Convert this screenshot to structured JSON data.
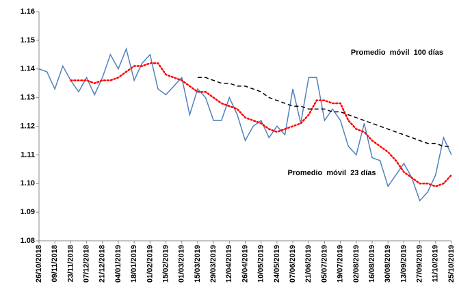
{
  "chart_data": {
    "type": "line",
    "categories": [
      "26/10/2018",
      null,
      "09/11/2018",
      null,
      "23/11/2018",
      null,
      "07/12/2018",
      null,
      "21/12/2018",
      null,
      "04/01/2019",
      null,
      "18/01/2019",
      null,
      "01/02/2019",
      null,
      "15/02/2019",
      null,
      "01/03/2019",
      null,
      "15/03/2019",
      null,
      "29/03/2019",
      null,
      "12/04/2019",
      null,
      "26/04/2019",
      null,
      "10/05/2019",
      null,
      "24/05/2019",
      null,
      "07/06/2019",
      null,
      "21/06/2019",
      null,
      "05/07/2019",
      null,
      "19/07/2019",
      null,
      "02/08/2019",
      null,
      "16/08/2019",
      null,
      "30/08/2019",
      null,
      "13/09/2019",
      null,
      "27/09/2019",
      null,
      "11/10/2019",
      null,
      "25/10/2019"
    ],
    "series": [
      {
        "color": "#4f81bd",
        "style": "solid",
        "values": [
          1.14,
          1.139,
          1.133,
          1.141,
          1.136,
          1.132,
          1.137,
          1.131,
          1.137,
          1.145,
          1.14,
          1.147,
          1.136,
          1.142,
          1.145,
          1.133,
          1.131,
          1.134,
          1.137,
          1.124,
          1.133,
          1.13,
          1.122,
          1.122,
          1.13,
          1.124,
          1.115,
          1.12,
          1.122,
          1.116,
          1.12,
          1.117,
          1.133,
          1.121,
          1.137,
          1.137,
          1.122,
          1.126,
          1.122,
          1.113,
          1.11,
          1.121,
          1.109,
          1.108,
          1.099,
          1.103,
          1.107,
          1.102,
          1.094,
          1.097,
          1.103,
          1.116,
          1.11
        ]
      },
      {
        "name": "Promedio  móvil  23 días",
        "color": "#ff0000",
        "style": "dotted",
        "values": [
          null,
          null,
          null,
          null,
          1.136,
          1.136,
          1.136,
          1.135,
          1.136,
          1.136,
          1.137,
          1.139,
          1.141,
          1.141,
          1.142,
          1.142,
          1.138,
          1.137,
          1.136,
          1.134,
          1.132,
          1.132,
          1.13,
          1.128,
          1.127,
          1.126,
          1.123,
          1.122,
          1.121,
          1.119,
          1.118,
          1.119,
          1.12,
          1.121,
          1.124,
          1.129,
          1.129,
          1.128,
          1.128,
          1.122,
          1.119,
          1.118,
          1.115,
          1.113,
          1.111,
          1.108,
          1.104,
          1.102,
          1.1,
          1.1,
          1.099,
          1.1,
          1.103
        ]
      },
      {
        "name": "Promedio  móvil  100 días",
        "color": "#000000",
        "style": "dashed",
        "values": [
          null,
          null,
          null,
          null,
          null,
          null,
          null,
          null,
          null,
          null,
          null,
          null,
          null,
          null,
          null,
          null,
          null,
          null,
          null,
          null,
          1.137,
          1.137,
          1.136,
          1.135,
          1.135,
          1.134,
          1.134,
          1.133,
          1.132,
          1.13,
          1.129,
          1.128,
          1.127,
          1.127,
          1.126,
          1.126,
          1.126,
          1.125,
          1.125,
          1.124,
          1.123,
          1.122,
          1.121,
          1.12,
          1.119,
          1.118,
          1.117,
          1.116,
          1.115,
          1.114,
          1.114,
          1.113,
          1.113
        ]
      }
    ],
    "ylim": [
      1.08,
      1.16
    ],
    "yticks": [
      1.08,
      1.09,
      {
        "value": 1.1,
        "label": "1.10"
      },
      1.11,
      1.12,
      1.13,
      1.14,
      1.15,
      1.16
    ],
    "grid": false
  }
}
